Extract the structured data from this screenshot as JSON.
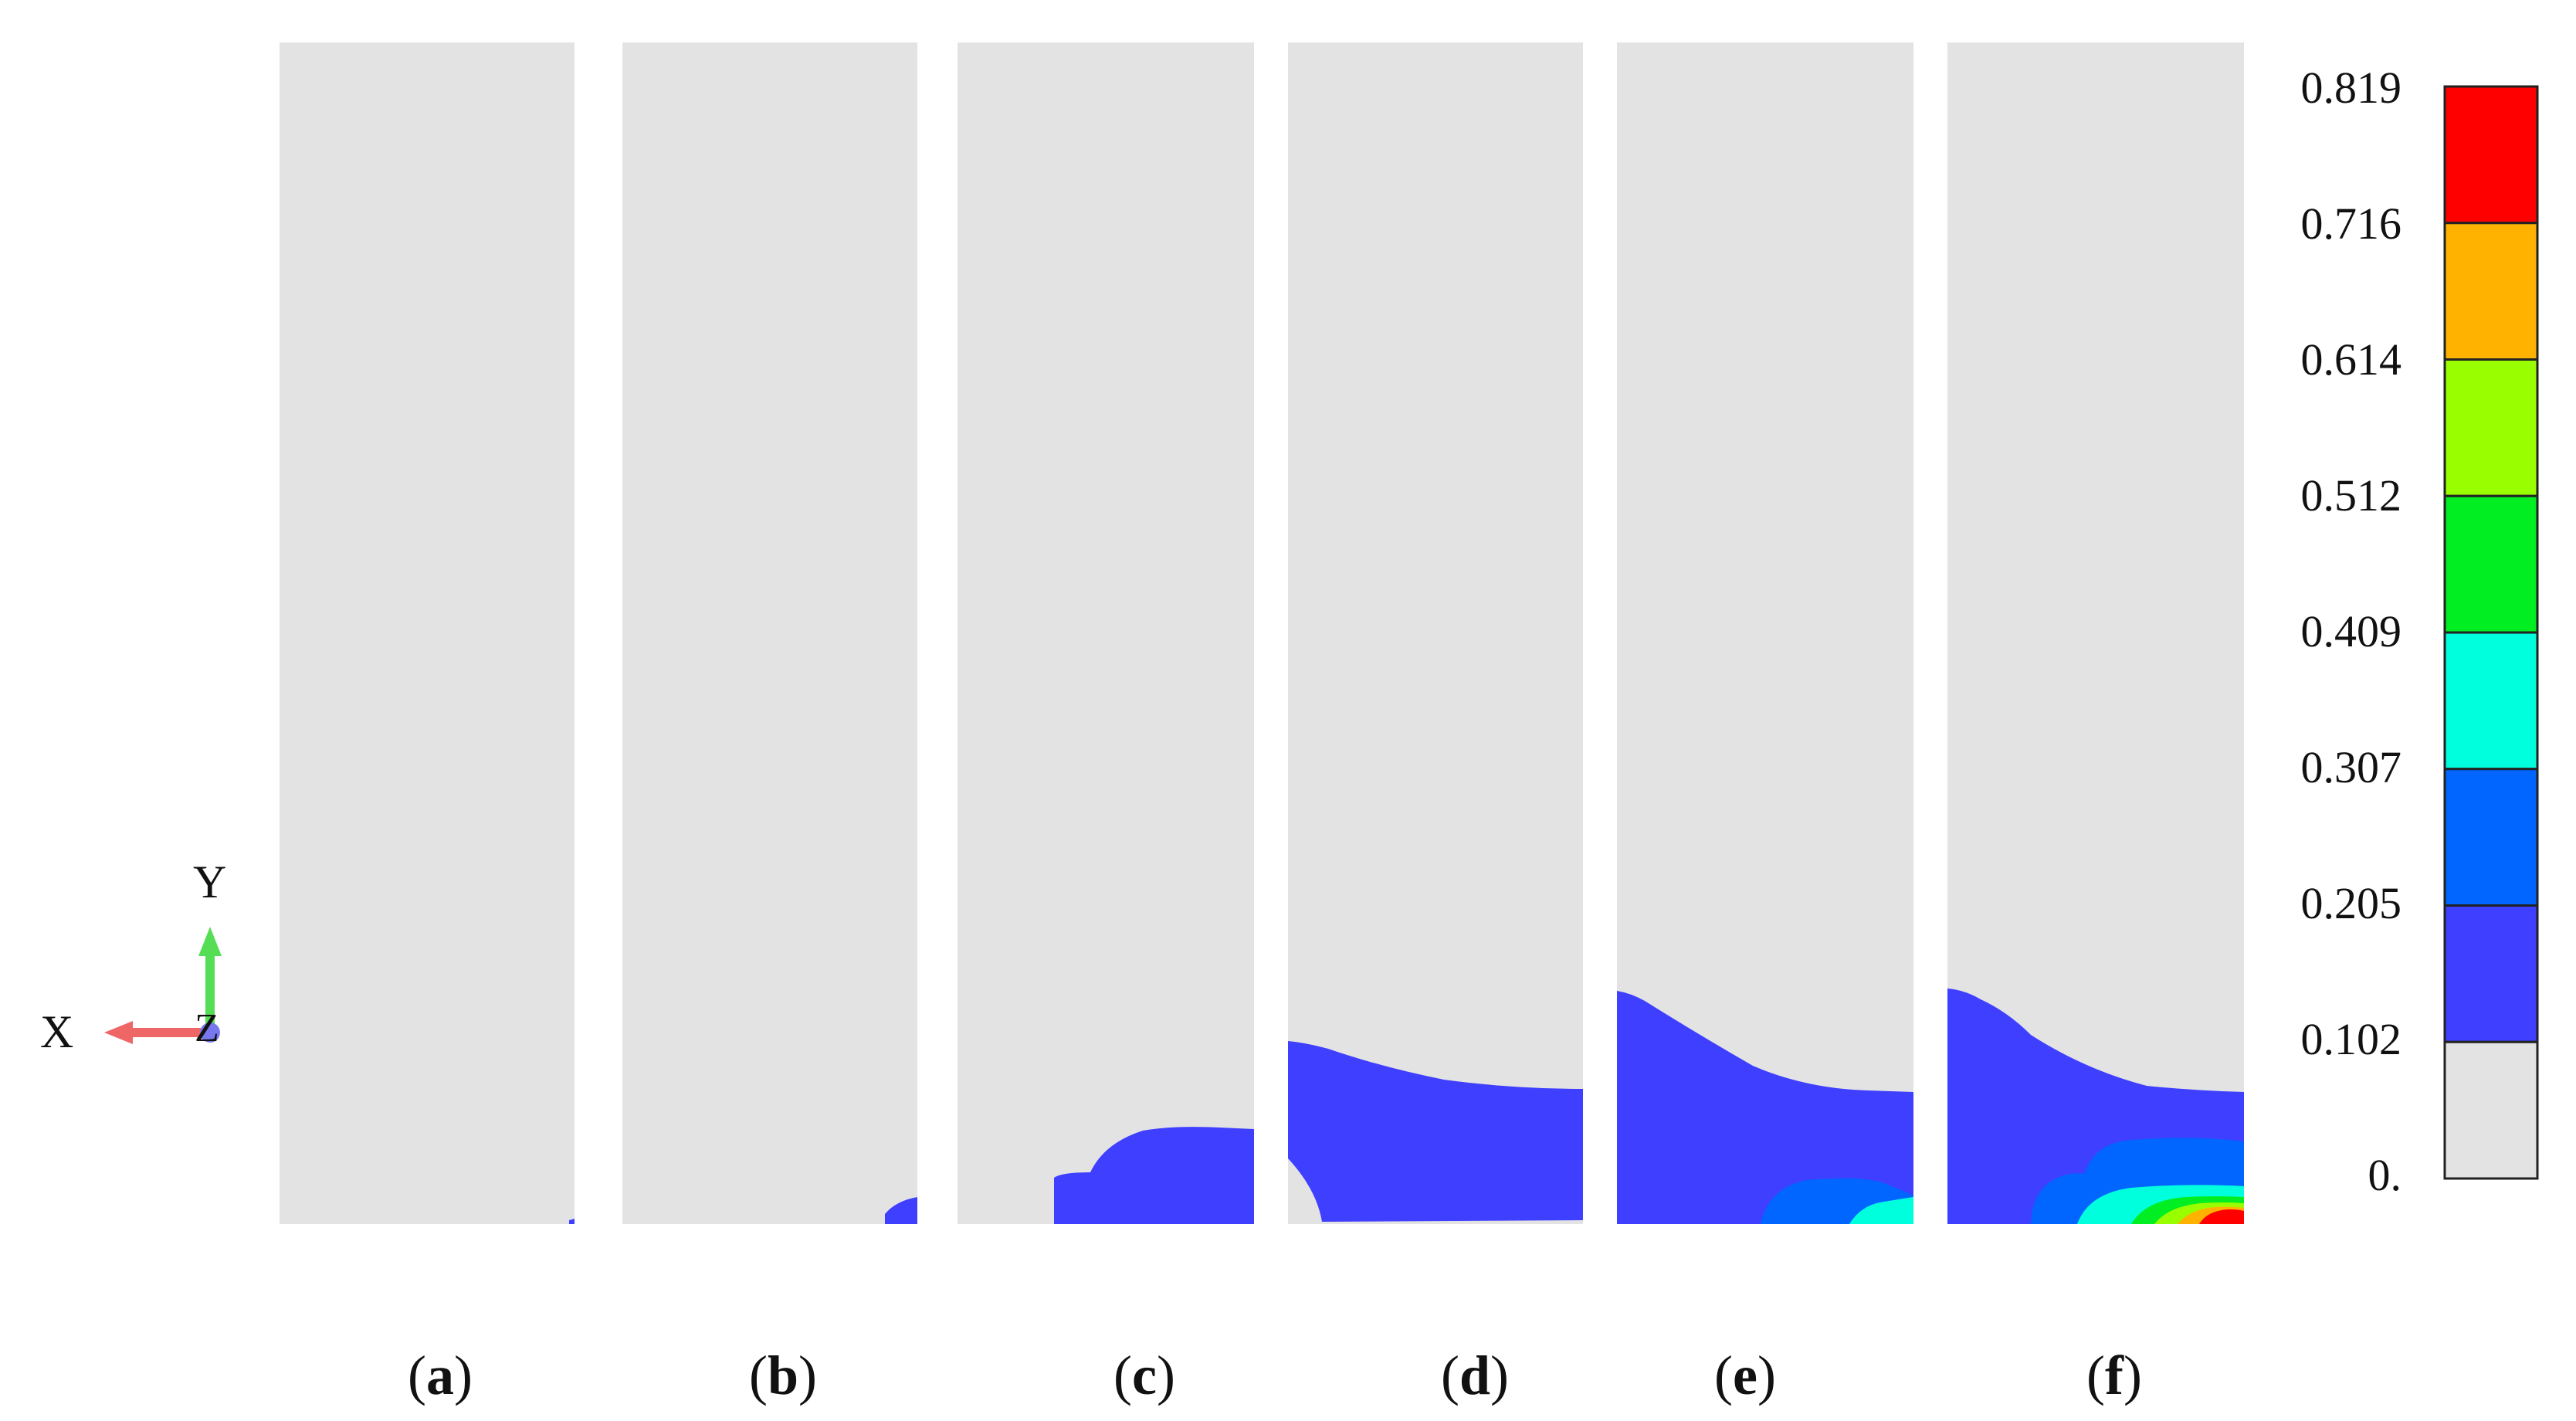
{
  "panels": [
    {
      "id": "a",
      "caption_open": "(",
      "caption_letter": "a",
      "caption_close": ")"
    },
    {
      "id": "b",
      "caption_open": "(",
      "caption_letter": "b",
      "caption_close": ")"
    },
    {
      "id": "c",
      "caption_open": "(",
      "caption_letter": "c",
      "caption_close": ")"
    },
    {
      "id": "d",
      "caption_open": "(",
      "caption_letter": "d",
      "caption_close": ")"
    },
    {
      "id": "e",
      "caption_open": "(",
      "caption_letter": "e",
      "caption_close": ")"
    },
    {
      "id": "f",
      "caption_open": "(",
      "caption_letter": "f",
      "caption_close": ")"
    }
  ],
  "legend": {
    "ticks": [
      "0.819",
      "0.716",
      "0.614",
      "0.512",
      "0.409",
      "0.307",
      "0.205",
      "0.102",
      "0."
    ],
    "colors_top_to_bottom": [
      "#ff0000",
      "#ffb300",
      "#99ff00",
      "#00ee22",
      "#00ffdd",
      "#0066ff",
      "#3f3fff",
      "#e3e3e3"
    ]
  },
  "axis_triad": {
    "x_label": "X",
    "y_label": "Y",
    "z_label": "Z"
  },
  "colors": {
    "background_field": "#e3e3e3",
    "level1": "#3f3fff",
    "level2": "#0066ff",
    "level3": "#00ffdd",
    "level4": "#00ee22",
    "level5": "#99ff00",
    "level6": "#ffb300",
    "level7": "#ff0000"
  }
}
